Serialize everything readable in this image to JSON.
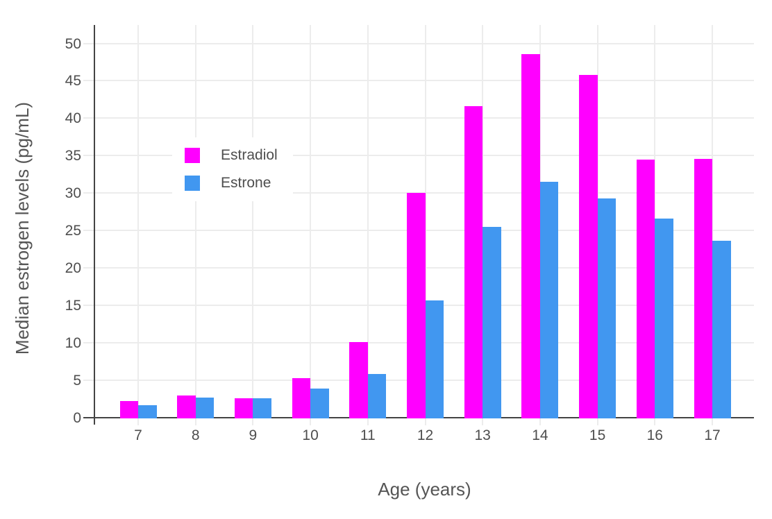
{
  "chart_data": {
    "type": "bar",
    "title": "",
    "xlabel": "Age (years)",
    "ylabel": "Median estrogen levels (pg/mL)",
    "categories": [
      "7",
      "8",
      "9",
      "10",
      "11",
      "12",
      "13",
      "14",
      "15",
      "16",
      "17"
    ],
    "series": [
      {
        "name": "Estradiol",
        "color": "#FF00FF",
        "values": [
          2.2,
          3.0,
          2.6,
          5.3,
          10.1,
          30.0,
          41.6,
          48.6,
          45.8,
          34.5,
          34.6
        ]
      },
      {
        "name": "Estrone",
        "color": "#4197F0",
        "values": [
          1.7,
          2.7,
          2.6,
          3.9,
          5.8,
          15.7,
          25.5,
          31.5,
          29.3,
          26.6,
          23.6
        ]
      }
    ],
    "yticks": [
      0,
      5,
      10,
      15,
      20,
      25,
      30,
      35,
      40,
      45,
      50
    ],
    "ylim": [
      0,
      52.5
    ],
    "grid": true,
    "legend_position": "inside-upper-left",
    "colors": {
      "axis_line": "#444444",
      "grid_line": "#ececec",
      "tick_text": "#4e4e4e",
      "title_text": "#555555",
      "background": "#ffffff"
    }
  }
}
